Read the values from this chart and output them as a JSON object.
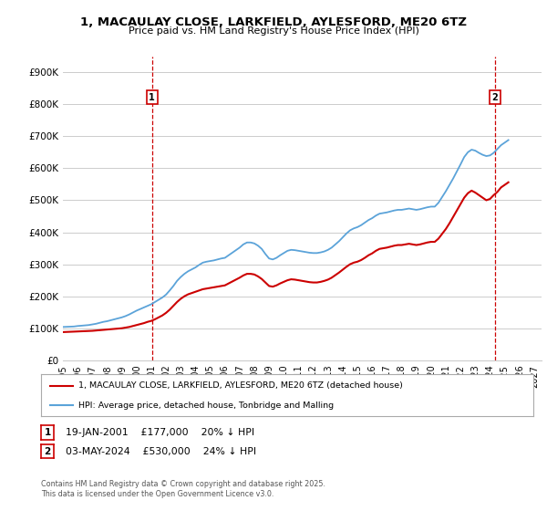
{
  "title": "1, MACAULAY CLOSE, LARKFIELD, AYLESFORD, ME20 6TZ",
  "subtitle": "Price paid vs. HM Land Registry's House Price Index (HPI)",
  "ytick_values": [
    0,
    100000,
    200000,
    300000,
    400000,
    500000,
    600000,
    700000,
    800000,
    900000
  ],
  "ylim": [
    0,
    950000
  ],
  "xlim_start": 1995.0,
  "xlim_end": 2027.5,
  "xtick_years": [
    1995,
    1996,
    1997,
    1998,
    1999,
    2000,
    2001,
    2002,
    2003,
    2004,
    2005,
    2006,
    2007,
    2008,
    2009,
    2010,
    2011,
    2012,
    2013,
    2014,
    2015,
    2016,
    2017,
    2018,
    2019,
    2020,
    2021,
    2022,
    2023,
    2024,
    2025,
    2026,
    2027
  ],
  "hpi_color": "#5ba3d9",
  "price_color": "#cc0000",
  "vline_color": "#cc0000",
  "background_color": "#ffffff",
  "grid_color": "#cccccc",
  "legend_label_price": "1, MACAULAY CLOSE, LARKFIELD, AYLESFORD, ME20 6TZ (detached house)",
  "legend_label_hpi": "HPI: Average price, detached house, Tonbridge and Malling",
  "sale1_year": 2001.05,
  "sale1_label": "1",
  "sale2_year": 2024.33,
  "sale2_label": "2",
  "annotation1_label": "1",
  "annotation1_date": "19-JAN-2001",
  "annotation1_price": "£177,000",
  "annotation1_hpi": "20% ↓ HPI",
  "annotation2_label": "2",
  "annotation2_date": "03-MAY-2024",
  "annotation2_price": "£530,000",
  "annotation2_hpi": "24% ↓ HPI",
  "footnote": "Contains HM Land Registry data © Crown copyright and database right 2025.\nThis data is licensed under the Open Government Licence v3.0.",
  "hpi_data": [
    [
      1995.0,
      104000
    ],
    [
      1995.25,
      104500
    ],
    [
      1995.5,
      105000
    ],
    [
      1995.75,
      105500
    ],
    [
      1996.0,
      107000
    ],
    [
      1996.25,
      108000
    ],
    [
      1996.5,
      109000
    ],
    [
      1996.75,
      110000
    ],
    [
      1997.0,
      112000
    ],
    [
      1997.25,
      114000
    ],
    [
      1997.5,
      117000
    ],
    [
      1997.75,
      120000
    ],
    [
      1998.0,
      122000
    ],
    [
      1998.25,
      125000
    ],
    [
      1998.5,
      128000
    ],
    [
      1998.75,
      131000
    ],
    [
      1999.0,
      134000
    ],
    [
      1999.25,
      138000
    ],
    [
      1999.5,
      143000
    ],
    [
      1999.75,
      149000
    ],
    [
      2000.0,
      155000
    ],
    [
      2000.25,
      160000
    ],
    [
      2000.5,
      165000
    ],
    [
      2000.75,
      170000
    ],
    [
      2001.0,
      175000
    ],
    [
      2001.25,
      182000
    ],
    [
      2001.5,
      189000
    ],
    [
      2001.75,
      196000
    ],
    [
      2002.0,
      205000
    ],
    [
      2002.25,
      218000
    ],
    [
      2002.5,
      232000
    ],
    [
      2002.75,
      248000
    ],
    [
      2003.0,
      260000
    ],
    [
      2003.25,
      270000
    ],
    [
      2003.5,
      278000
    ],
    [
      2003.75,
      284000
    ],
    [
      2004.0,
      290000
    ],
    [
      2004.25,
      298000
    ],
    [
      2004.5,
      305000
    ],
    [
      2004.75,
      308000
    ],
    [
      2005.0,
      310000
    ],
    [
      2005.25,
      312000
    ],
    [
      2005.5,
      315000
    ],
    [
      2005.75,
      318000
    ],
    [
      2006.0,
      320000
    ],
    [
      2006.25,
      328000
    ],
    [
      2006.5,
      336000
    ],
    [
      2006.75,
      344000
    ],
    [
      2007.0,
      352000
    ],
    [
      2007.25,
      362000
    ],
    [
      2007.5,
      368000
    ],
    [
      2007.75,
      368000
    ],
    [
      2008.0,
      365000
    ],
    [
      2008.25,
      358000
    ],
    [
      2008.5,
      348000
    ],
    [
      2008.75,
      332000
    ],
    [
      2009.0,
      318000
    ],
    [
      2009.25,
      315000
    ],
    [
      2009.5,
      320000
    ],
    [
      2009.75,
      328000
    ],
    [
      2010.0,
      335000
    ],
    [
      2010.25,
      342000
    ],
    [
      2010.5,
      345000
    ],
    [
      2010.75,
      344000
    ],
    [
      2011.0,
      342000
    ],
    [
      2011.25,
      340000
    ],
    [
      2011.5,
      338000
    ],
    [
      2011.75,
      336000
    ],
    [
      2012.0,
      335000
    ],
    [
      2012.25,
      335000
    ],
    [
      2012.5,
      337000
    ],
    [
      2012.75,
      340000
    ],
    [
      2013.0,
      345000
    ],
    [
      2013.25,
      352000
    ],
    [
      2013.5,
      362000
    ],
    [
      2013.75,
      372000
    ],
    [
      2014.0,
      384000
    ],
    [
      2014.25,
      396000
    ],
    [
      2014.5,
      406000
    ],
    [
      2014.75,
      412000
    ],
    [
      2015.0,
      416000
    ],
    [
      2015.25,
      422000
    ],
    [
      2015.5,
      430000
    ],
    [
      2015.75,
      438000
    ],
    [
      2016.0,
      444000
    ],
    [
      2016.25,
      452000
    ],
    [
      2016.5,
      458000
    ],
    [
      2016.75,
      460000
    ],
    [
      2017.0,
      462000
    ],
    [
      2017.25,
      465000
    ],
    [
      2017.5,
      468000
    ],
    [
      2017.75,
      470000
    ],
    [
      2018.0,
      470000
    ],
    [
      2018.25,
      472000
    ],
    [
      2018.5,
      474000
    ],
    [
      2018.75,
      472000
    ],
    [
      2019.0,
      470000
    ],
    [
      2019.25,
      472000
    ],
    [
      2019.5,
      475000
    ],
    [
      2019.75,
      478000
    ],
    [
      2020.0,
      480000
    ],
    [
      2020.25,
      480000
    ],
    [
      2020.5,
      492000
    ],
    [
      2020.75,
      510000
    ],
    [
      2021.0,
      528000
    ],
    [
      2021.25,
      548000
    ],
    [
      2021.5,
      568000
    ],
    [
      2021.75,
      590000
    ],
    [
      2022.0,
      612000
    ],
    [
      2022.25,
      635000
    ],
    [
      2022.5,
      650000
    ],
    [
      2022.75,
      658000
    ],
    [
      2023.0,
      655000
    ],
    [
      2023.25,
      648000
    ],
    [
      2023.5,
      642000
    ],
    [
      2023.75,
      638000
    ],
    [
      2024.0,
      640000
    ],
    [
      2024.25,
      648000
    ],
    [
      2024.5,
      660000
    ],
    [
      2024.75,
      672000
    ],
    [
      2025.0,
      680000
    ],
    [
      2025.25,
      688000
    ]
  ],
  "price_data": [
    [
      1995.0,
      88000
    ],
    [
      1995.25,
      88500
    ],
    [
      1995.5,
      89000
    ],
    [
      1995.75,
      89500
    ],
    [
      1996.0,
      90000
    ],
    [
      1996.25,
      90500
    ],
    [
      1996.5,
      91000
    ],
    [
      1996.75,
      91500
    ],
    [
      1997.0,
      92000
    ],
    [
      1997.25,
      93000
    ],
    [
      1997.5,
      94000
    ],
    [
      1997.75,
      95000
    ],
    [
      1998.0,
      96000
    ],
    [
      1998.25,
      97000
    ],
    [
      1998.5,
      98000
    ],
    [
      1998.75,
      99000
    ],
    [
      1999.0,
      100000
    ],
    [
      1999.25,
      102000
    ],
    [
      1999.5,
      104000
    ],
    [
      1999.75,
      107000
    ],
    [
      2000.0,
      110000
    ],
    [
      2000.25,
      113000
    ],
    [
      2000.5,
      116000
    ],
    [
      2000.75,
      120000
    ],
    [
      2001.0,
      123000
    ],
    [
      2001.25,
      128000
    ],
    [
      2001.5,
      134000
    ],
    [
      2001.75,
      140000
    ],
    [
      2002.0,
      148000
    ],
    [
      2002.25,
      158000
    ],
    [
      2002.5,
      170000
    ],
    [
      2002.75,
      182000
    ],
    [
      2003.0,
      192000
    ],
    [
      2003.25,
      200000
    ],
    [
      2003.5,
      206000
    ],
    [
      2003.75,
      210000
    ],
    [
      2004.0,
      214000
    ],
    [
      2004.25,
      218000
    ],
    [
      2004.5,
      222000
    ],
    [
      2004.75,
      224000
    ],
    [
      2005.0,
      226000
    ],
    [
      2005.25,
      228000
    ],
    [
      2005.5,
      230000
    ],
    [
      2005.75,
      232000
    ],
    [
      2006.0,
      234000
    ],
    [
      2006.25,
      240000
    ],
    [
      2006.5,
      246000
    ],
    [
      2006.75,
      252000
    ],
    [
      2007.0,
      258000
    ],
    [
      2007.25,
      265000
    ],
    [
      2007.5,
      270000
    ],
    [
      2007.75,
      270000
    ],
    [
      2008.0,
      268000
    ],
    [
      2008.25,
      262000
    ],
    [
      2008.5,
      254000
    ],
    [
      2008.75,
      243000
    ],
    [
      2009.0,
      232000
    ],
    [
      2009.25,
      230000
    ],
    [
      2009.5,
      234000
    ],
    [
      2009.75,
      240000
    ],
    [
      2010.0,
      245000
    ],
    [
      2010.25,
      250000
    ],
    [
      2010.5,
      253000
    ],
    [
      2010.75,
      252000
    ],
    [
      2011.0,
      250000
    ],
    [
      2011.25,
      248000
    ],
    [
      2011.5,
      246000
    ],
    [
      2011.75,
      244000
    ],
    [
      2012.0,
      243000
    ],
    [
      2012.25,
      243000
    ],
    [
      2012.5,
      245000
    ],
    [
      2012.75,
      248000
    ],
    [
      2013.0,
      252000
    ],
    [
      2013.25,
      258000
    ],
    [
      2013.5,
      266000
    ],
    [
      2013.75,
      274000
    ],
    [
      2014.0,
      283000
    ],
    [
      2014.25,
      292000
    ],
    [
      2014.5,
      300000
    ],
    [
      2014.75,
      305000
    ],
    [
      2015.0,
      308000
    ],
    [
      2015.25,
      313000
    ],
    [
      2015.5,
      320000
    ],
    [
      2015.75,
      328000
    ],
    [
      2016.0,
      334000
    ],
    [
      2016.25,
      342000
    ],
    [
      2016.5,
      348000
    ],
    [
      2016.75,
      350000
    ],
    [
      2017.0,
      352000
    ],
    [
      2017.25,
      355000
    ],
    [
      2017.5,
      358000
    ],
    [
      2017.75,
      360000
    ],
    [
      2018.0,
      360000
    ],
    [
      2018.25,
      362000
    ],
    [
      2018.5,
      364000
    ],
    [
      2018.75,
      362000
    ],
    [
      2019.0,
      360000
    ],
    [
      2019.25,
      362000
    ],
    [
      2019.5,
      365000
    ],
    [
      2019.75,
      368000
    ],
    [
      2020.0,
      370000
    ],
    [
      2020.25,
      370000
    ],
    [
      2020.5,
      380000
    ],
    [
      2020.75,
      395000
    ],
    [
      2021.0,
      410000
    ],
    [
      2021.25,
      428000
    ],
    [
      2021.5,
      448000
    ],
    [
      2021.75,
      468000
    ],
    [
      2022.0,
      488000
    ],
    [
      2022.25,
      508000
    ],
    [
      2022.5,
      522000
    ],
    [
      2022.75,
      530000
    ],
    [
      2023.0,
      524000
    ],
    [
      2023.25,
      516000
    ],
    [
      2023.5,
      508000
    ],
    [
      2023.75,
      500000
    ],
    [
      2024.0,
      504000
    ],
    [
      2024.25,
      516000
    ],
    [
      2024.5,
      526000
    ],
    [
      2024.75,
      540000
    ],
    [
      2025.0,
      548000
    ],
    [
      2025.25,
      556000
    ]
  ]
}
